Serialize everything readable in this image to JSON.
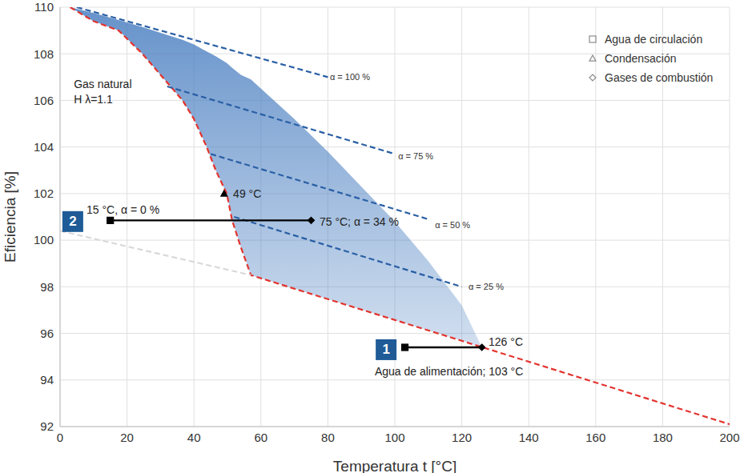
{
  "chart_data": {
    "type": "line",
    "xlabel": "Temperatura t [°C]",
    "ylabel": "Eficiencia [%]",
    "xlim": [
      0,
      200
    ],
    "ylim": [
      92,
      110
    ],
    "xticks": [
      0,
      20,
      40,
      60,
      80,
      100,
      120,
      140,
      160,
      180,
      200
    ],
    "yticks": [
      92,
      94,
      96,
      98,
      100,
      102,
      104,
      106,
      108,
      110
    ],
    "grid": true,
    "legend": "top-right",
    "series": [
      {
        "type": "area",
        "color": "#4a7fc1",
        "x": [
          3,
          10,
          17.5,
          24.6,
          30,
          36.6,
          40,
          43.8,
          46.5,
          49.8,
          51.4,
          54,
          57,
          70,
          80,
          90,
          100,
          110,
          120,
          126
        ],
        "low": [
          110,
          109.4,
          109,
          108,
          107.1,
          106,
          105.2,
          104,
          103,
          102,
          100.85,
          99.7,
          98.5,
          97.92,
          97.47,
          97.02,
          96.57,
          96.13,
          95.68,
          95.4
        ],
        "values": [
          110,
          109.75,
          109.45,
          109.15,
          108.9,
          108.6,
          108.4,
          108.1,
          107.9,
          107.6,
          107.4,
          107.1,
          106.9,
          105.2,
          103.8,
          102.3,
          100.8,
          99.1,
          97.2,
          95.4
        ]
      },
      {
        "type": "line",
        "color": "#e3342f",
        "line_style": "dashed",
        "x": [
          3,
          10,
          17.5,
          24.6,
          30,
          36.6,
          40,
          43.8,
          46.5,
          49.8,
          51.4,
          54,
          57,
          200
        ],
        "values": [
          110,
          109.4,
          109,
          108,
          107.1,
          106,
          105.2,
          104,
          103,
          102,
          100.85,
          99.7,
          98.5,
          92.1
        ]
      },
      {
        "type": "line",
        "color": "#d9d9d9",
        "line_style": "dashed",
        "x": [
          0,
          57
        ],
        "values": [
          100.4,
          98.5
        ]
      },
      {
        "type": "line",
        "color": "#2a5fa5",
        "line_style": "dashed",
        "x": [
          5,
          80
        ],
        "values": [
          110,
          107
        ]
      },
      {
        "type": "line",
        "color": "#2a5fa5",
        "line_style": "dashed",
        "x": [
          32,
          100
        ],
        "values": [
          106.6,
          103.7
        ]
      },
      {
        "type": "line",
        "color": "#2a5fa5",
        "line_style": "dashed",
        "x": [
          45,
          110
        ],
        "values": [
          103.7,
          100.9
        ]
      },
      {
        "type": "line",
        "color": "#2a5fa5",
        "line_style": "dashed",
        "x": [
          52,
          120
        ],
        "values": [
          101,
          98
        ]
      },
      {
        "type": "line",
        "color": "#000000",
        "line_style": "solid",
        "x": [
          103,
          126
        ],
        "values": [
          95.4,
          95.4
        ]
      },
      {
        "type": "line",
        "color": "#000000",
        "line_style": "solid",
        "x": [
          15,
          75
        ],
        "values": [
          100.85,
          100.85
        ]
      },
      {
        "name": "Agua de circulación",
        "type": "scatter",
        "marker": "square",
        "color": "#000000",
        "x": [
          103,
          15
        ],
        "values": [
          95.4,
          100.85
        ]
      },
      {
        "name": "Condensación",
        "type": "scatter",
        "marker": "triangle",
        "color": "#000000",
        "x": [
          49
        ],
        "values": [
          102
        ]
      },
      {
        "name": "Gases de combustión",
        "type": "scatter",
        "marker": "diamond",
        "color": "#000000",
        "x": [
          126,
          75
        ],
        "values": [
          95.4,
          100.85
        ]
      }
    ],
    "annotations": [
      {
        "text": "Gas natural",
        "x": 4.1,
        "y": 106.7
      },
      {
        "text": "H λ=1.1",
        "x": 4.1,
        "y": 106.05
      },
      {
        "text": "49 °C",
        "x": 51.7,
        "y": 102
      },
      {
        "text": "15 °C, α = 0 %",
        "x": 7.9,
        "y": 101.3
      },
      {
        "text": "75 °C; α = 34 %",
        "x": 77.5,
        "y": 100.8
      },
      {
        "text": "126 °C",
        "x": 128,
        "y": 95.65
      },
      {
        "text": "Agua de alimentación; 103 °C",
        "x": 94,
        "y": 94.36
      }
    ],
    "line_labels": [
      {
        "text": "α = 100 %",
        "x": 80.6,
        "y": 107
      },
      {
        "text": "α = 75 %",
        "x": 101,
        "y": 103.6
      },
      {
        "text": "α = 50 %",
        "x": 112,
        "y": 100.65
      },
      {
        "text": "α = 25 %",
        "x": 122,
        "y": 98
      }
    ],
    "callouts": [
      {
        "text": "1",
        "x": 97.4,
        "y": 95.3
      },
      {
        "text": "2",
        "x": 3.8,
        "y": 100.8
      }
    ]
  }
}
